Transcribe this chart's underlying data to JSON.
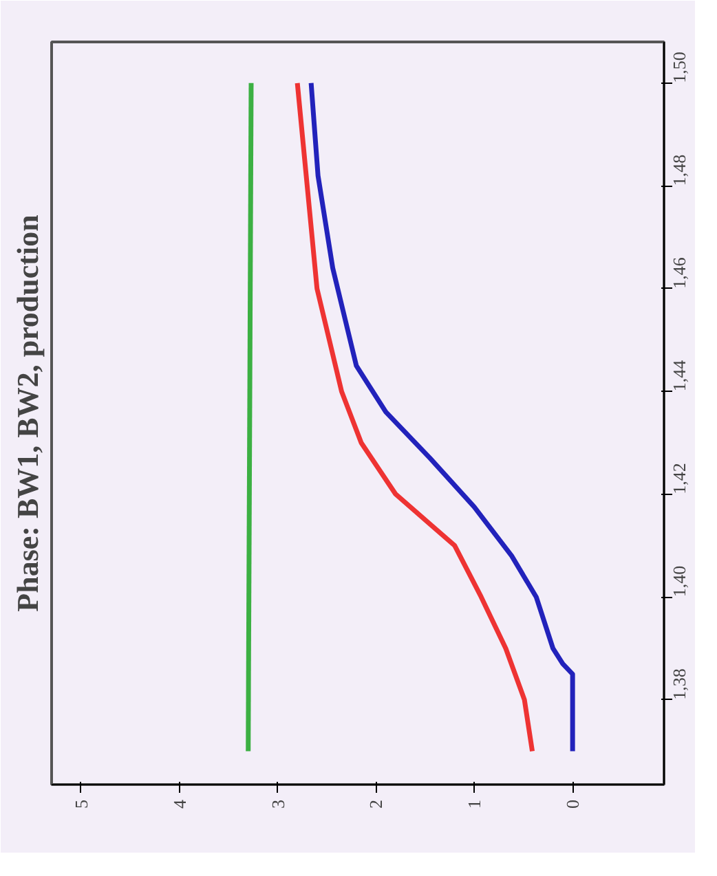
{
  "chart_data": {
    "type": "line",
    "title": "Phase: BW1, BW2, production",
    "xlim": [
      5.3,
      -0.93
    ],
    "ylim": [
      1.3635,
      1.508
    ],
    "xticks": [
      0,
      1,
      2,
      3,
      4,
      5
    ],
    "yticks": [
      {
        "value": 1.38,
        "label": "1,38"
      },
      {
        "value": 1.4,
        "label": "1,40"
      },
      {
        "value": 1.42,
        "label": "1,42"
      },
      {
        "value": 1.44,
        "label": "1,44"
      },
      {
        "value": 1.46,
        "label": "1,46"
      },
      {
        "value": 1.48,
        "label": "1,48"
      },
      {
        "value": 1.5,
        "label": "1,50"
      }
    ],
    "grid": false,
    "marker": "none",
    "line_style": "solid",
    "series": [
      {
        "color": "#3cb043",
        "values": [
          1.37,
          1.5
        ],
        "x": [
          3.3,
          3.27
        ]
      },
      {
        "color": "#ee3333",
        "values": [
          1.37,
          1.38,
          1.39,
          1.4,
          1.41,
          1.42,
          1.43,
          1.44,
          1.46,
          1.48,
          1.5
        ],
        "x": [
          0.41,
          0.49,
          0.68,
          0.93,
          1.2,
          1.8,
          2.15,
          2.35,
          2.6,
          2.7,
          2.8
        ]
      },
      {
        "color": "#2222bb",
        "values": [
          1.37,
          1.385,
          1.387,
          1.39,
          1.4,
          1.408,
          1.4175,
          1.427,
          1.436,
          1.445,
          1.464,
          1.482,
          1.5
        ],
        "x": [
          0,
          0,
          0.1,
          0.2,
          0.37,
          0.62,
          1.0,
          1.45,
          1.9,
          2.2,
          2.44,
          2.59,
          2.66
        ]
      }
    ]
  }
}
